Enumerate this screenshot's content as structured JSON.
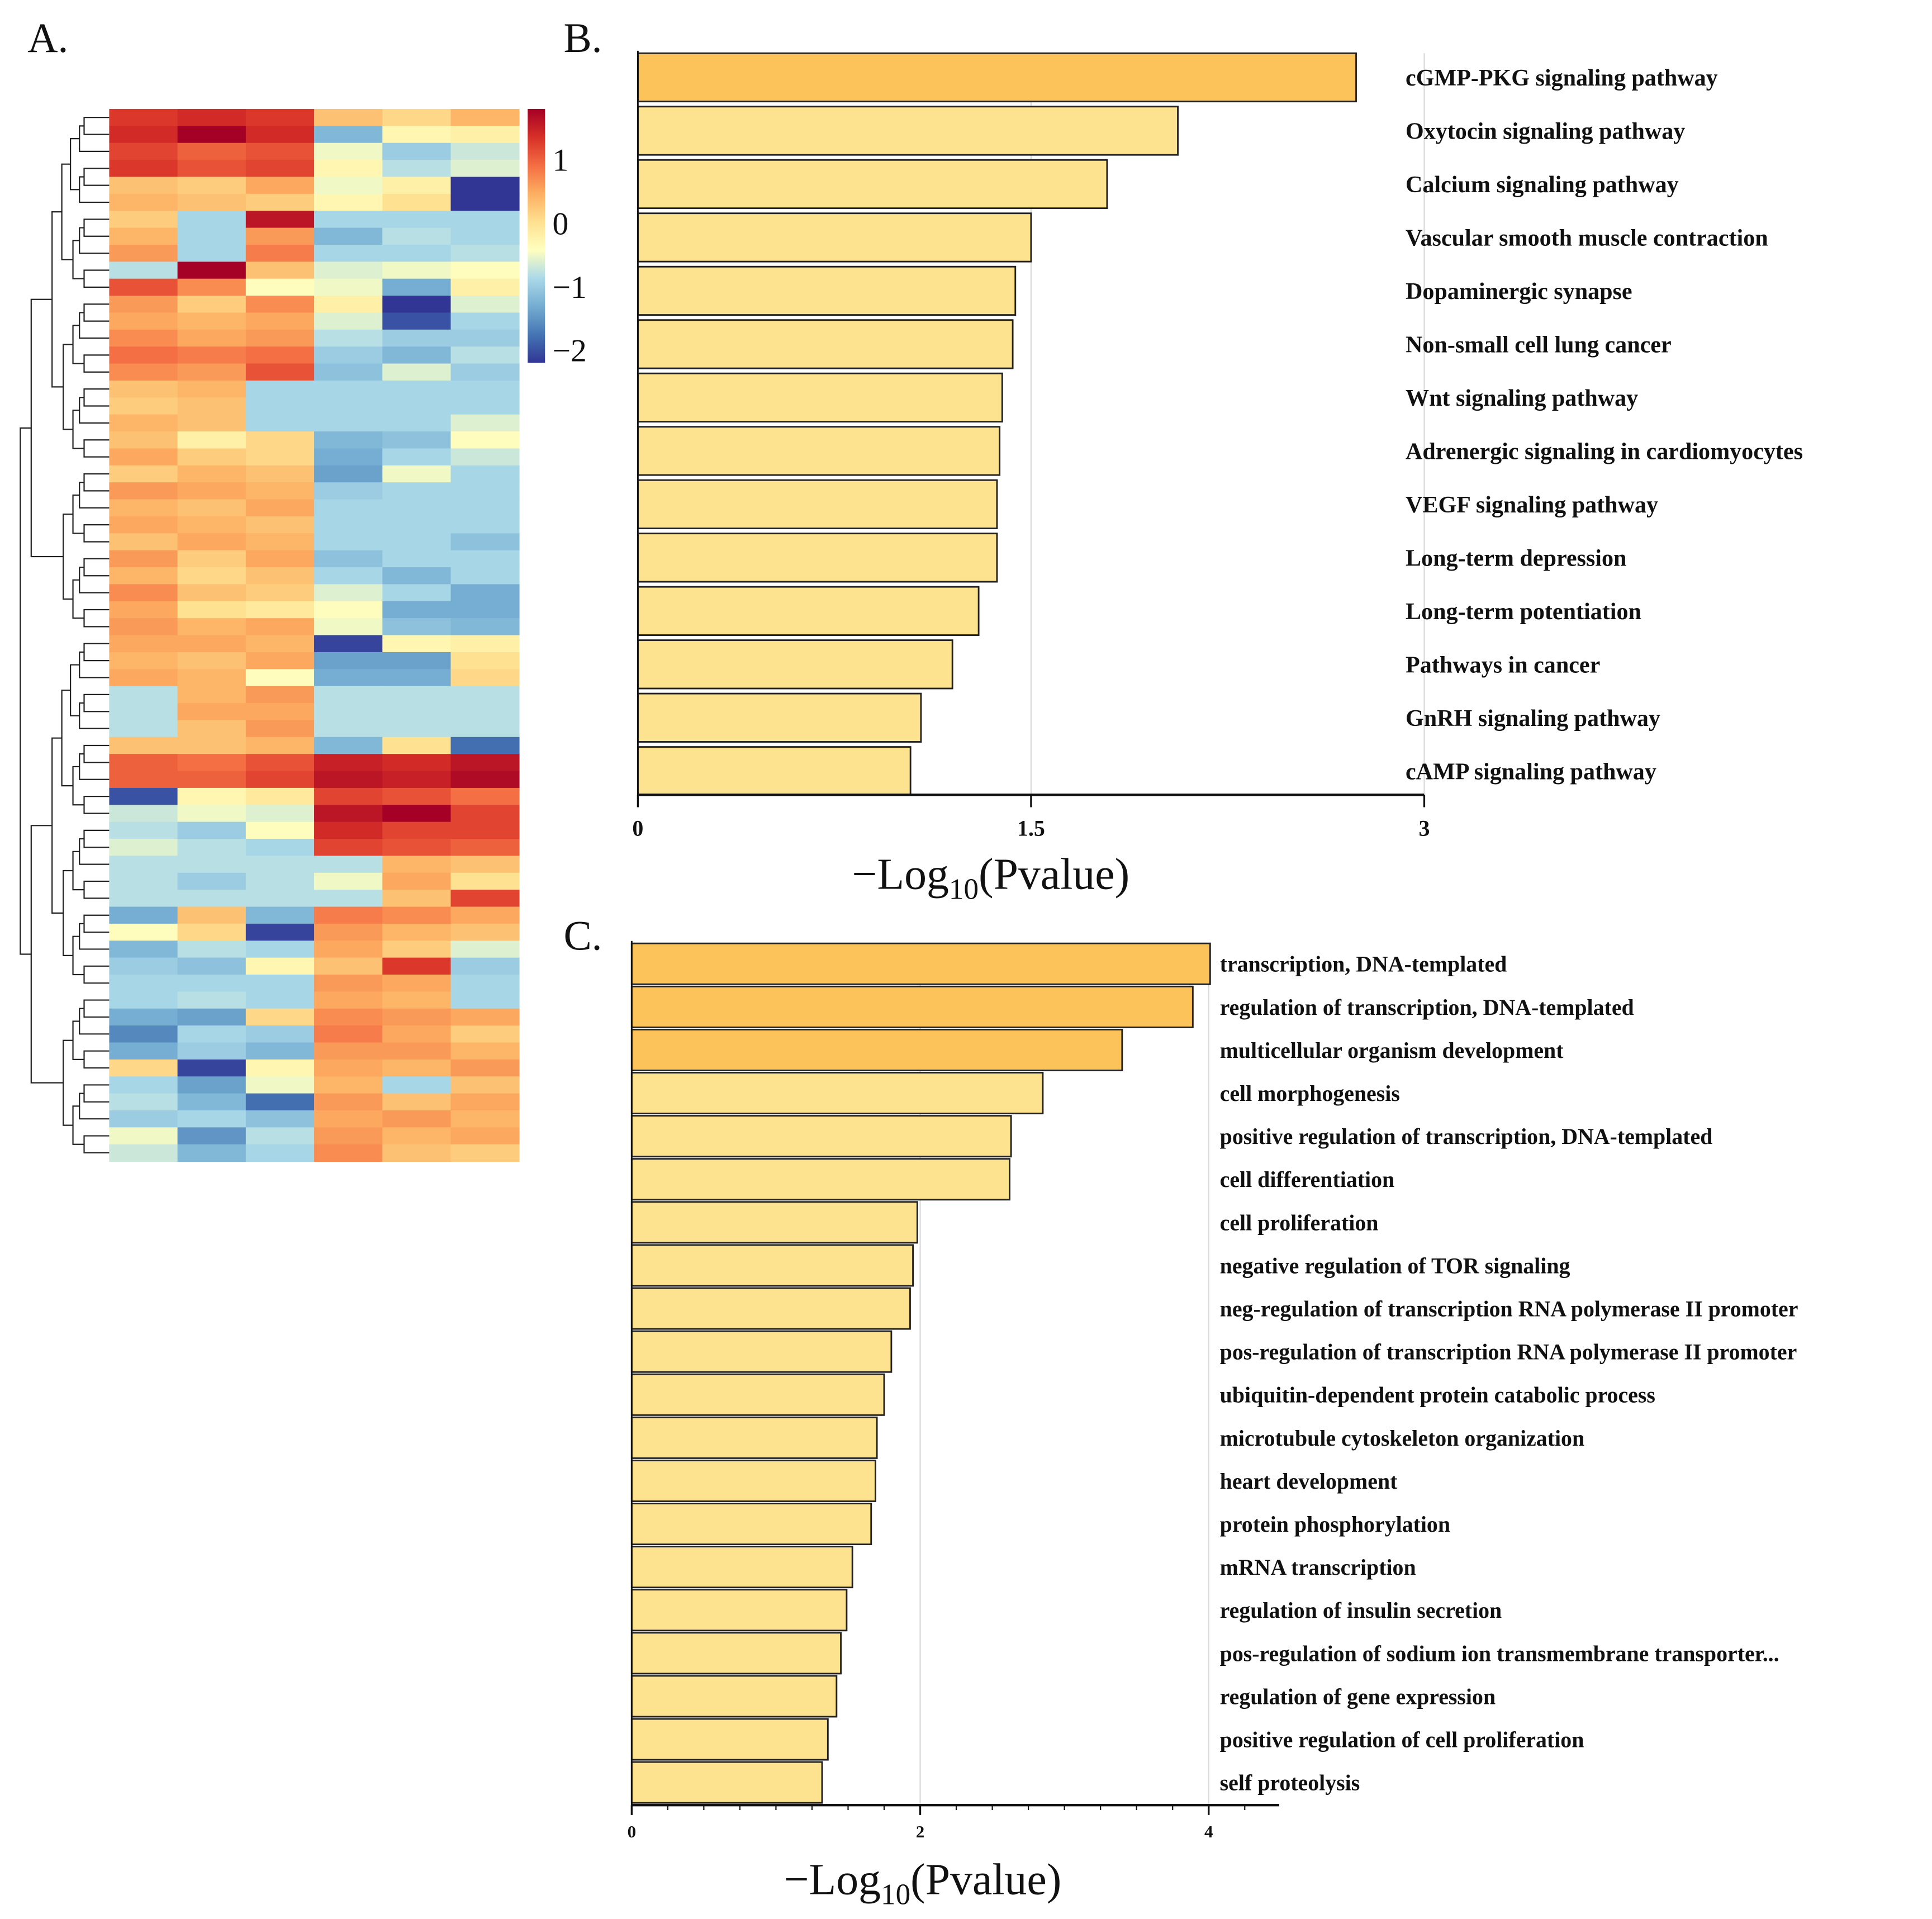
{
  "panel_labels": {
    "a": "A.",
    "b": "B.",
    "c": "C."
  },
  "colors": {
    "highlight_bar": "#fdc35b",
    "normal_bar": "#fde28f",
    "bar_stroke": "#222222",
    "grid": "#d9d9d9"
  },
  "chart_data": [
    {
      "type": "heatmap",
      "panel": "A",
      "title": "",
      "colorbar": {
        "ticks": [
          1,
          0,
          -1,
          -2
        ],
        "tick_labels": [
          "1",
          "0",
          "−1",
          "−2"
        ],
        "range": [
          -2.2,
          1.8
        ],
        "colormap": [
          "#313695",
          "#4575b4",
          "#74add1",
          "#abd9e9",
          "#ffffbf",
          "#fee090",
          "#fdae61",
          "#f46d43",
          "#d73027",
          "#a50026"
        ]
      },
      "columns": 6,
      "rows": [
        [
          1.3,
          1.4,
          1.3,
          0.3,
          0.1,
          0.4
        ],
        [
          1.4,
          1.8,
          1.4,
          -1.2,
          -0.3,
          -0.2
        ],
        [
          1.2,
          1.0,
          1.1,
          -0.5,
          -1.0,
          -0.7
        ],
        [
          1.3,
          1.1,
          1.2,
          -0.3,
          -0.8,
          -0.6
        ],
        [
          0.3,
          0.2,
          0.5,
          -0.5,
          -0.2,
          -2.2
        ],
        [
          0.4,
          0.3,
          0.2,
          -0.3,
          0.0,
          -2.2
        ],
        [
          0.2,
          -0.9,
          1.6,
          -0.9,
          -0.9,
          -0.9
        ],
        [
          0.4,
          -0.9,
          0.6,
          -1.2,
          -0.8,
          -0.9
        ],
        [
          0.6,
          -0.9,
          0.8,
          -0.9,
          -0.9,
          -0.8
        ],
        [
          -0.8,
          1.8,
          0.3,
          -0.6,
          -0.5,
          -0.4
        ],
        [
          1.1,
          0.7,
          -0.4,
          -0.5,
          -1.3,
          -0.2
        ],
        [
          0.6,
          0.2,
          0.7,
          -0.2,
          -2.2,
          -0.6
        ],
        [
          0.5,
          0.4,
          0.5,
          -0.6,
          -2.0,
          -0.9
        ],
        [
          0.7,
          0.5,
          0.6,
          -0.8,
          -1.0,
          -1.0
        ],
        [
          0.9,
          0.8,
          0.9,
          -1.0,
          -1.2,
          -0.8
        ],
        [
          0.7,
          0.6,
          1.1,
          -1.1,
          -0.6,
          -1.0
        ],
        [
          0.3,
          0.4,
          -0.9,
          -0.9,
          -0.9,
          -0.9
        ],
        [
          0.2,
          0.3,
          -0.9,
          -0.9,
          -0.9,
          -0.9
        ],
        [
          0.4,
          0.3,
          -0.9,
          -0.9,
          -0.9,
          -0.6
        ],
        [
          0.3,
          -0.2,
          0.1,
          -1.2,
          -1.1,
          -0.4
        ],
        [
          0.5,
          0.2,
          0.1,
          -1.3,
          -0.9,
          -0.7
        ],
        [
          0.2,
          0.4,
          0.3,
          -1.4,
          -0.5,
          -0.9
        ],
        [
          0.6,
          0.5,
          0.4,
          -1.0,
          -0.9,
          -0.9
        ],
        [
          0.4,
          0.3,
          0.5,
          -0.9,
          -0.9,
          -0.9
        ],
        [
          0.5,
          0.4,
          0.3,
          -0.9,
          -0.9,
          -0.9
        ],
        [
          0.3,
          0.5,
          0.4,
          -0.9,
          -0.9,
          -1.1
        ],
        [
          0.6,
          0.2,
          0.5,
          -1.1,
          -0.9,
          -0.9
        ],
        [
          0.4,
          0.1,
          0.3,
          -0.9,
          -1.2,
          -0.9
        ],
        [
          0.7,
          0.3,
          0.2,
          -0.6,
          -0.9,
          -1.3
        ],
        [
          0.5,
          0.0,
          -0.1,
          -0.4,
          -1.3,
          -1.3
        ],
        [
          0.6,
          0.4,
          0.5,
          -0.5,
          -1.1,
          -1.2
        ],
        [
          0.5,
          0.5,
          0.4,
          -2.1,
          -0.3,
          -0.2
        ],
        [
          0.4,
          0.3,
          0.5,
          -1.4,
          -1.4,
          0.0
        ],
        [
          0.5,
          0.4,
          -0.4,
          -1.3,
          -1.3,
          0.1
        ],
        [
          -0.8,
          0.4,
          0.6,
          -0.8,
          -0.8,
          -0.8
        ],
        [
          -0.8,
          0.5,
          0.5,
          -0.8,
          -0.8,
          -0.8
        ],
        [
          -0.8,
          0.3,
          0.6,
          -0.8,
          -0.8,
          -0.8
        ],
        [
          0.3,
          0.3,
          0.4,
          -1.2,
          0.0,
          -1.8
        ],
        [
          1.0,
          0.9,
          1.1,
          1.5,
          1.4,
          1.6
        ],
        [
          1.0,
          1.0,
          1.2,
          1.6,
          1.5,
          1.7
        ],
        [
          -2.0,
          -0.3,
          -0.1,
          1.2,
          1.1,
          0.9
        ],
        [
          -0.7,
          -0.5,
          -0.6,
          1.6,
          1.9,
          1.2
        ],
        [
          -0.8,
          -1.0,
          -0.4,
          1.4,
          1.2,
          1.2
        ],
        [
          -0.6,
          -0.8,
          -0.9,
          1.2,
          1.1,
          1.0
        ],
        [
          -0.8,
          -0.8,
          -0.8,
          -0.8,
          0.4,
          0.3
        ],
        [
          -0.8,
          -1.0,
          -0.8,
          -0.5,
          0.5,
          0.0
        ],
        [
          -0.8,
          -0.8,
          -0.8,
          -0.8,
          0.3,
          1.2
        ],
        [
          -1.3,
          0.3,
          -1.2,
          0.8,
          0.7,
          0.5
        ],
        [
          -0.4,
          0.1,
          -2.1,
          0.6,
          0.4,
          0.3
        ],
        [
          -1.2,
          -0.8,
          -0.9,
          0.5,
          0.2,
          -0.6
        ],
        [
          -1.0,
          -1.1,
          -0.3,
          0.3,
          1.3,
          -1.0
        ],
        [
          -0.9,
          -0.9,
          -0.9,
          0.6,
          0.5,
          -0.9
        ],
        [
          -0.9,
          -0.8,
          -0.9,
          0.5,
          0.4,
          -0.9
        ],
        [
          -1.3,
          -1.4,
          0.1,
          0.7,
          0.6,
          0.5
        ],
        [
          -1.6,
          -0.9,
          -1.0,
          0.8,
          0.5,
          0.2
        ],
        [
          -1.3,
          -1.0,
          -1.2,
          0.6,
          0.6,
          0.4
        ],
        [
          0.1,
          -2.1,
          -0.3,
          0.5,
          0.4,
          0.6
        ],
        [
          -0.9,
          -1.4,
          -0.5,
          0.4,
          -0.9,
          0.3
        ],
        [
          -0.8,
          -1.2,
          -1.8,
          0.6,
          0.3,
          0.5
        ],
        [
          -1.0,
          -0.9,
          -1.1,
          0.5,
          0.6,
          0.4
        ],
        [
          -0.5,
          -1.5,
          -0.8,
          0.6,
          0.4,
          0.5
        ],
        [
          -0.7,
          -1.2,
          -0.9,
          0.7,
          0.3,
          0.2
        ]
      ]
    },
    {
      "type": "bar",
      "panel": "B",
      "orientation": "horizontal",
      "xlabel_main": "−Log",
      "xlabel_sub": "10",
      "xlabel_tail": "(Pvalue)",
      "xlim": [
        0,
        3
      ],
      "xticks": [
        0,
        1.5,
        3
      ],
      "xtick_labels": [
        "0",
        "1.5",
        "3"
      ],
      "grid": "vertical at 1.5",
      "categories": [
        "cGMP-PKG signaling pathway",
        "Oxytocin signaling pathway",
        "Calcium signaling pathway",
        "Vascular smooth muscle contraction",
        "Dopaminergic synapse",
        "Non-small cell lung cancer",
        "Wnt signaling pathway",
        "Adrenergic signaling in cardiomyocytes",
        "VEGF signaling pathway",
        "Long-term depression",
        "Long-term potentiation",
        "Pathways in cancer",
        "GnRH signaling pathway",
        "cAMP signaling pathway"
      ],
      "values": [
        2.74,
        2.06,
        1.79,
        1.5,
        1.44,
        1.43,
        1.39,
        1.38,
        1.37,
        1.37,
        1.3,
        1.2,
        1.08,
        1.04
      ],
      "highlighted": [
        true,
        false,
        false,
        false,
        false,
        false,
        false,
        false,
        false,
        false,
        false,
        false,
        false,
        false
      ]
    },
    {
      "type": "bar",
      "panel": "C",
      "orientation": "horizontal",
      "xlabel_main": "−Log",
      "xlabel_sub": "10",
      "xlabel_tail": "(Pvalue)",
      "xlim": [
        0,
        4.5
      ],
      "xticks": [
        0,
        2,
        4
      ],
      "xtick_labels": [
        "0",
        "2",
        "4"
      ],
      "grid": "vertical at 2 and 4",
      "categories": [
        "transcription, DNA-templated",
        "regulation of transcription, DNA-templated",
        "multicellular organism development",
        "cell morphogenesis",
        "positive regulation of transcription, DNA-templated",
        "cell differentiation",
        "cell proliferation",
        "negative regulation of TOR signaling",
        "neg-regulation of transcription RNA polymerase II promoter",
        "pos-regulation of transcription RNA polymerase II promoter",
        "ubiquitin-dependent protein catabolic process",
        "microtubule cytoskeleton organization",
        "heart development",
        "protein phosphorylation",
        "mRNA transcription",
        "regulation of insulin secretion",
        "pos-regulation of sodium ion transmembrane transporter...",
        "regulation of gene expression",
        "positive regulation of cell proliferation",
        "self proteolysis"
      ],
      "values": [
        4.01,
        3.89,
        3.4,
        2.85,
        2.63,
        2.62,
        1.98,
        1.95,
        1.93,
        1.8,
        1.75,
        1.7,
        1.69,
        1.66,
        1.53,
        1.49,
        1.45,
        1.42,
        1.36,
        1.32
      ],
      "highlighted": [
        true,
        true,
        true,
        false,
        false,
        false,
        false,
        false,
        false,
        false,
        false,
        false,
        false,
        false,
        false,
        false,
        false,
        false,
        false,
        false
      ]
    }
  ]
}
